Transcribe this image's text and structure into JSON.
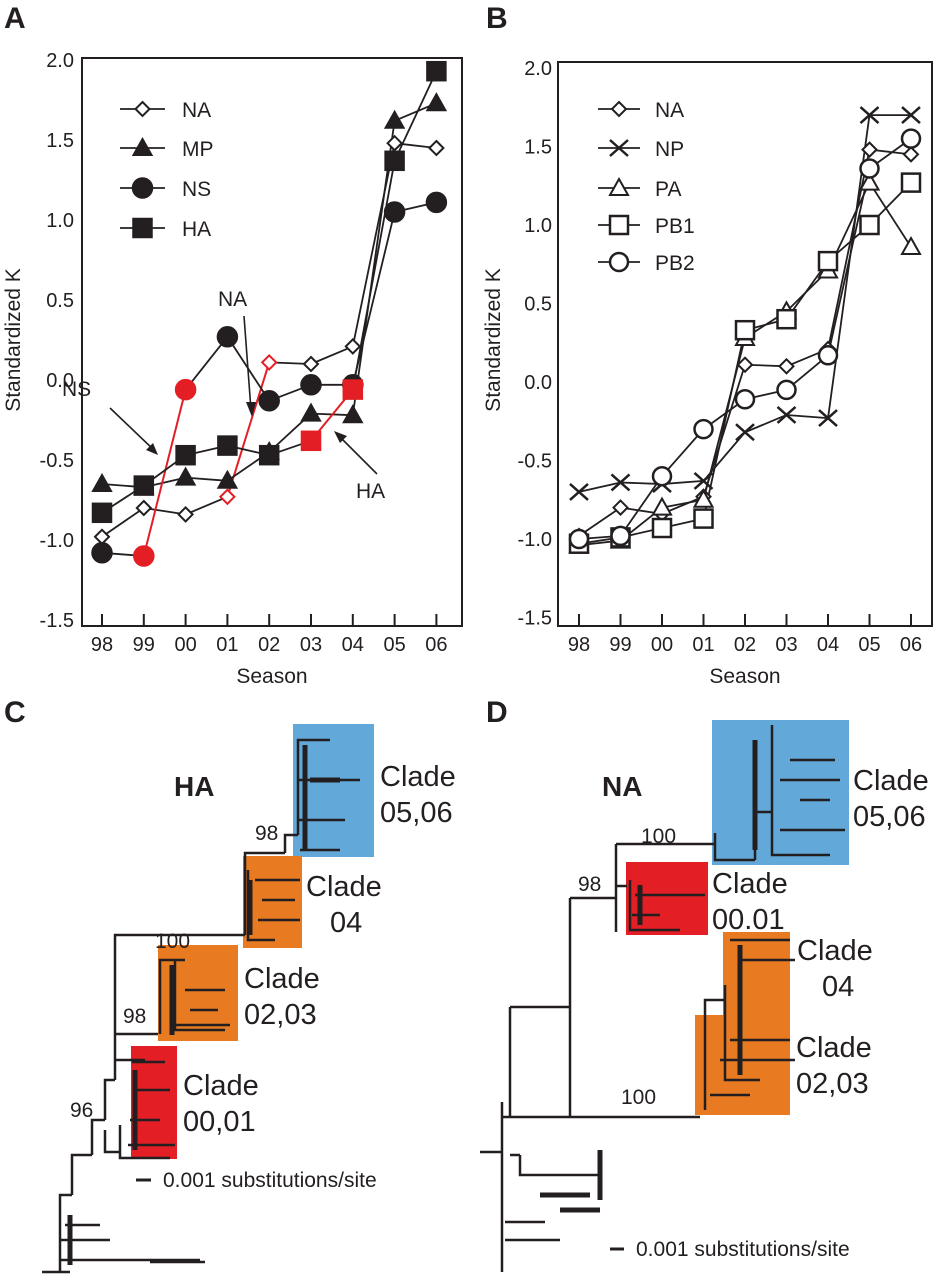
{
  "panels": {
    "a": "A",
    "b": "B",
    "c": "C",
    "d": "D"
  },
  "chart_data": [
    {
      "type": "line",
      "panel": "A",
      "title": "",
      "xlabel": "Season",
      "ylabel": "Standardized K",
      "ylim": [
        -1.5,
        2.0
      ],
      "yticks": [
        "2.0",
        "1.5",
        "1.0",
        "0.5",
        "0.0",
        "-0.5",
        "-1.0",
        "-1.5"
      ],
      "ytick_values": [
        2.0,
        1.5,
        1.0,
        0.5,
        0.0,
        -0.5,
        -1.0,
        -1.5
      ],
      "categories": [
        "98",
        "99",
        "00",
        "01",
        "02",
        "03",
        "04",
        "05",
        "06"
      ],
      "legend_position": "top-left",
      "highlight_color": "#e31e24",
      "series": [
        {
          "name": "NA",
          "marker": "diamond-open",
          "values": [
            -0.98,
            -0.8,
            -0.84,
            -0.73,
            0.11,
            0.1,
            0.21,
            1.48,
            1.45
          ],
          "highlight": [
            3,
            4
          ]
        },
        {
          "name": "MP",
          "marker": "triangle-filled",
          "values": [
            -0.65,
            -0.67,
            -0.61,
            -0.63,
            -0.45,
            -0.21,
            -0.22,
            1.62,
            1.73
          ],
          "highlight": []
        },
        {
          "name": "NS",
          "marker": "circle-filled",
          "values": [
            -1.08,
            -1.1,
            -0.06,
            0.27,
            -0.13,
            -0.03,
            -0.03,
            1.05,
            1.11
          ],
          "highlight": [
            1,
            2
          ]
        },
        {
          "name": "HA",
          "marker": "square-filled",
          "values": [
            -0.83,
            -0.66,
            -0.47,
            -0.41,
            -0.47,
            -0.38,
            -0.06,
            1.37,
            1.93
          ],
          "highlight": [
            5,
            6
          ]
        }
      ],
      "annotations": [
        {
          "text": "NS",
          "points_to": "NS red segment 99-00"
        },
        {
          "text": "NA",
          "points_to": "NA red segment 01-02"
        },
        {
          "text": "HA",
          "points_to": "HA red segment 03-04"
        }
      ]
    },
    {
      "type": "line",
      "panel": "B",
      "title": "",
      "xlabel": "Season",
      "ylabel": "Standardized K",
      "ylim": [
        -1.5,
        2.0
      ],
      "yticks": [
        "2.0",
        "1.5",
        "1.0",
        "0.5",
        "0.0",
        "-0.5",
        "-1.0",
        "-1.5"
      ],
      "ytick_values": [
        2.0,
        1.5,
        1.0,
        0.5,
        0.0,
        -0.5,
        -1.0,
        -1.5
      ],
      "categories": [
        "98",
        "99",
        "00",
        "01",
        "02",
        "03",
        "04",
        "05",
        "06"
      ],
      "legend_position": "top-left",
      "series": [
        {
          "name": "NA",
          "marker": "diamond-open",
          "values": [
            -0.98,
            -0.8,
            -0.84,
            -0.73,
            0.11,
            0.1,
            0.21,
            1.48,
            1.45
          ]
        },
        {
          "name": "NP",
          "marker": "x",
          "values": [
            -0.7,
            -0.64,
            -0.65,
            -0.63,
            -0.32,
            -0.21,
            -0.23,
            1.7,
            1.7
          ]
        },
        {
          "name": "PA",
          "marker": "triangle-open",
          "values": [
            -1.04,
            -1.01,
            -0.8,
            -0.75,
            0.28,
            0.45,
            0.71,
            1.27,
            0.86
          ]
        },
        {
          "name": "PB1",
          "marker": "square-open",
          "values": [
            -1.03,
            -0.99,
            -0.93,
            -0.87,
            0.33,
            0.4,
            0.77,
            1.0,
            1.27
          ]
        },
        {
          "name": "PB2",
          "marker": "circle-open",
          "values": [
            -1.0,
            -0.98,
            -0.6,
            -0.3,
            -0.11,
            -0.05,
            0.17,
            1.36,
            1.55
          ]
        }
      ]
    }
  ],
  "trees": {
    "c": {
      "gene": "HA",
      "colors": {
        "blue": "#62a8d8",
        "orange": "#e87b22",
        "red": "#e31e24"
      },
      "clades": [
        {
          "line1": "Clade",
          "line2": "05,06",
          "color": "blue"
        },
        {
          "line1": "Clade",
          "line2": "04",
          "color": "orange"
        },
        {
          "line1": "Clade",
          "line2": "02,03",
          "color": "orange"
        },
        {
          "line1": "Clade",
          "line2": "00,01",
          "color": "red"
        }
      ],
      "bootstrap": [
        "98",
        "100",
        "98",
        "96"
      ],
      "scale_label": "0.001 substitutions/site"
    },
    "d": {
      "gene": "NA",
      "clades": [
        {
          "line1": "Clade",
          "line2": "05,06",
          "color": "blue"
        },
        {
          "line1": "Clade",
          "line2": "00.01",
          "color": "red"
        },
        {
          "line1": "Clade",
          "line2": "04",
          "color": "orange"
        },
        {
          "line1": "Clade",
          "line2": "02,03",
          "color": "orange"
        }
      ],
      "bootstrap": [
        "100",
        "98",
        "100"
      ],
      "scale_label": "0.001 substitutions/site"
    }
  }
}
